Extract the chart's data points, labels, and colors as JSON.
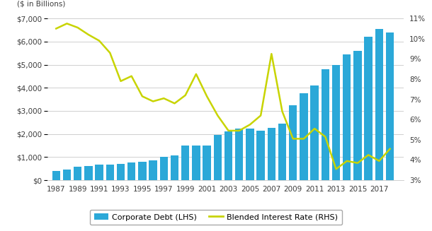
{
  "years": [
    1987,
    1988,
    1989,
    1990,
    1991,
    1992,
    1993,
    1994,
    1995,
    1996,
    1997,
    1998,
    1999,
    2000,
    2001,
    2002,
    2003,
    2004,
    2005,
    2006,
    2007,
    2008,
    2009,
    2010,
    2011,
    2012,
    2013,
    2014,
    2015,
    2016,
    2017,
    2018
  ],
  "corporate_debt": [
    400,
    450,
    575,
    610,
    660,
    670,
    700,
    770,
    810,
    870,
    1000,
    1060,
    1500,
    1510,
    1500,
    1950,
    2100,
    2230,
    2230,
    2150,
    2250,
    2460,
    3250,
    3750,
    4100,
    4800,
    5000,
    5450,
    5600,
    6200,
    6550,
    6400
  ],
  "blended_rate": [
    10.5,
    10.75,
    10.55,
    10.2,
    9.9,
    9.3,
    7.9,
    8.15,
    7.15,
    6.9,
    7.05,
    6.8,
    7.2,
    8.25,
    7.15,
    6.2,
    5.45,
    5.45,
    5.75,
    6.2,
    9.25,
    6.4,
    5.05,
    5.05,
    5.55,
    5.15,
    3.55,
    3.95,
    3.85,
    4.25,
    3.95,
    4.55
  ],
  "bar_color": "#2ba8d8",
  "line_color": "#c8d400",
  "ylabel_left": "($ in Billions)",
  "ylim_left": [
    0,
    7000
  ],
  "ylim_right": [
    3,
    11
  ],
  "yticks_left": [
    0,
    1000,
    2000,
    3000,
    4000,
    5000,
    6000,
    7000
  ],
  "yticks_right": [
    3,
    4,
    5,
    6,
    7,
    8,
    9,
    10,
    11
  ],
  "legend_label_bar": "Corporate Debt (LHS)",
  "legend_label_line": "Blended Interest Rate (RHS)",
  "background_color": "#ffffff",
  "grid_color": "#c8c8c8",
  "axis_text_color": "#3c3c3c",
  "tick_fontsize": 7.5
}
